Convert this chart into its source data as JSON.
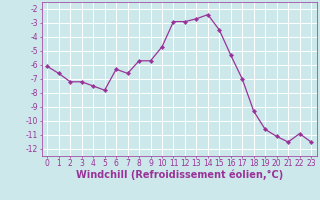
{
  "xlabel": "Windchill (Refroidissement éolien,°C)",
  "x": [
    0,
    1,
    2,
    3,
    4,
    5,
    6,
    7,
    8,
    9,
    10,
    11,
    12,
    13,
    14,
    15,
    16,
    17,
    18,
    19,
    20,
    21,
    22,
    23
  ],
  "y": [
    -6.1,
    -6.6,
    -7.2,
    -7.2,
    -7.5,
    -7.8,
    -6.3,
    -6.6,
    -5.7,
    -5.7,
    -4.7,
    -2.9,
    -2.9,
    -2.7,
    -2.4,
    -3.5,
    -5.3,
    -7.0,
    -9.3,
    -10.6,
    -11.1,
    -11.5,
    -10.9,
    -11.5
  ],
  "line_color": "#993399",
  "marker": "D",
  "marker_size": 2.2,
  "bg_color": "#cde8ea",
  "grid_color": "#b0d4d8",
  "ylim": [
    -12.5,
    -1.5
  ],
  "xlim": [
    -0.5,
    23.5
  ],
  "yticks": [
    -2,
    -3,
    -4,
    -5,
    -6,
    -7,
    -8,
    -9,
    -10,
    -11,
    -12
  ],
  "xticks": [
    0,
    1,
    2,
    3,
    4,
    5,
    6,
    7,
    8,
    9,
    10,
    11,
    12,
    13,
    14,
    15,
    16,
    17,
    18,
    19,
    20,
    21,
    22,
    23
  ],
  "tick_label_fontsize": 5.5,
  "xlabel_fontsize": 7.0,
  "linewidth": 0.9
}
